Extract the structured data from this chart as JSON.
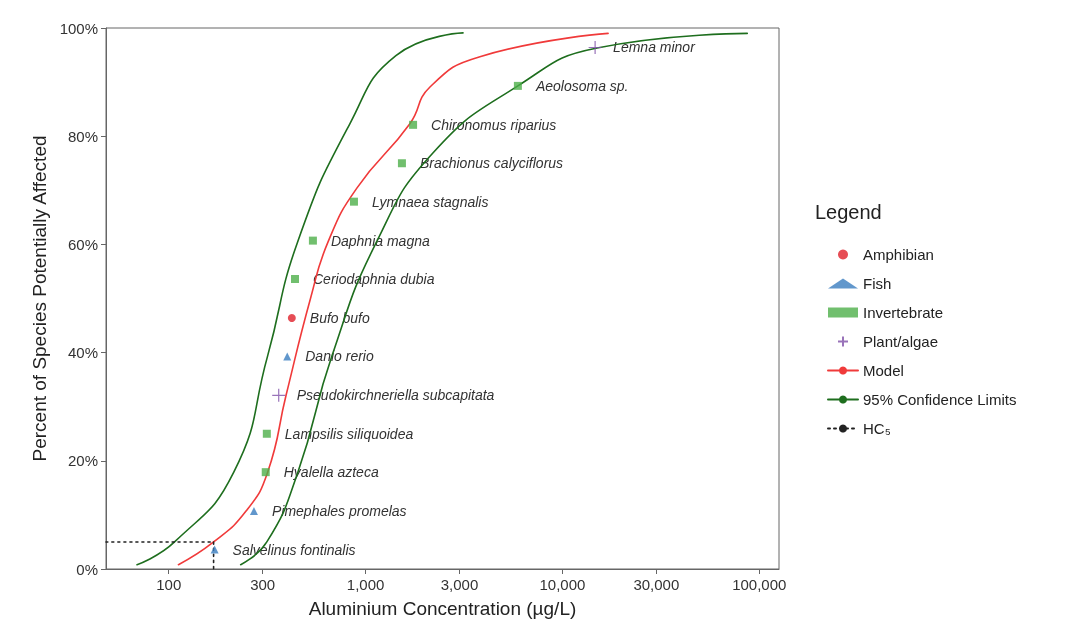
{
  "chart_data": {
    "type": "scatter",
    "xlabel": "Aluminium Concentration (µg/L)",
    "ylabel": "Percent of Species Potentially Affected",
    "legend_title": "Legend",
    "legend": "right",
    "log": "x",
    "xlim": [
      48,
      126000
    ],
    "ylim": [
      0,
      100
    ],
    "xticks": [
      100,
      300,
      {
        "value": 1000,
        "label": "1,000"
      },
      {
        "value": 3000,
        "label": "3,000"
      },
      {
        "value": 10000,
        "label": "10,000"
      },
      {
        "value": 30000,
        "label": "30,000"
      },
      {
        "value": 100000,
        "label": "100,000"
      }
    ],
    "yticks": [
      {
        "value": 0,
        "label": "0%"
      },
      {
        "value": 20,
        "label": "20%"
      },
      {
        "value": 40,
        "label": "40%"
      },
      {
        "value": 60,
        "label": "60%"
      },
      {
        "value": 80,
        "label": "80%"
      },
      {
        "value": 100,
        "label": "100%"
      }
    ],
    "series": [
      {
        "name": "Amphibian",
        "marker": "circle",
        "color": "#e0202a",
        "x": [
          422
        ],
        "values": [
          46.4
        ]
      },
      {
        "name": "Fish",
        "marker": "triangle",
        "color": "#3a7dbf",
        "x": [
          171,
          271,
          400
        ],
        "values": [
          3.6,
          10.7,
          39.3
        ]
      },
      {
        "name": "Invertebrate",
        "marker": "square",
        "color": "#4daf4a",
        "x": [
          311,
          315,
          438,
          540,
          873,
          1530,
          1743,
          5940
        ],
        "values": [
          17.9,
          25,
          53.6,
          60.7,
          67.9,
          75,
          82.1,
          89.3
        ]
      },
      {
        "name": "Plant/algae",
        "marker": "cross",
        "color": "#8050a8",
        "x": [
          362,
          14660
        ],
        "values": [
          32.1,
          96.4
        ]
      },
      {
        "name": "Model",
        "type": "line",
        "marker": "none",
        "line_style": "solid",
        "color": "#f03a3a",
        "x": [
          112,
          169,
          247,
          318,
          395,
          525,
          647,
          903,
          1679,
          2124,
          3810,
          17060
        ],
        "values": [
          0.8,
          5,
          10.7,
          17.9,
          32.2,
          50,
          60.6,
          70.4,
          82.3,
          89.1,
          94.7,
          99
        ]
      },
      {
        "name": "95% Confidence Limits",
        "type": "line",
        "marker": "none",
        "line_style": "solid",
        "color": "#1e6e1e",
        "x": [
          69,
          107,
          214,
          318,
          453,
          832,
          1426,
          3126
        ],
        "values": [
          0.8,
          5,
          17.9,
          39.4,
          60.6,
          82.3,
          94.9,
          99.1
        ]
      },
      {
        "type": "line",
        "marker": "none",
        "line_style": "solid",
        "color": "#1e6e1e",
        "x": [
          232,
          315,
          453,
          675,
          1142,
          2198,
          5940,
          15000,
          86900
        ],
        "values": [
          0.8,
          5,
          17.9,
          39.4,
          60.6,
          76.9,
          89.3,
          96.3,
          99
        ]
      },
      {
        "name": "HC₅",
        "type": "line",
        "marker": "none",
        "line_style": "dotted",
        "color": "#222222",
        "x": [
          48,
          169,
          169
        ],
        "values": [
          5,
          5,
          0
        ]
      }
    ],
    "annotations": [
      {
        "text": "Salvelinus fontinalis",
        "x": 171,
        "y": 3.6
      },
      {
        "text": "Pimephales promelas",
        "x": 271,
        "y": 10.7
      },
      {
        "text": "Hyalella azteca",
        "x": 311,
        "y": 17.9
      },
      {
        "text": "Lampsilis siliquoidea",
        "x": 315,
        "y": 25
      },
      {
        "text": "Pseudokirchneriella subcapitata",
        "x": 362,
        "y": 32.1
      },
      {
        "text": "Danio rerio",
        "x": 400,
        "y": 39.3
      },
      {
        "text": "Bufo bufo",
        "x": 422,
        "y": 46.4
      },
      {
        "text": "Ceriodaphnia dubia",
        "x": 438,
        "y": 53.6
      },
      {
        "text": "Daphnia magna",
        "x": 540,
        "y": 60.7
      },
      {
        "text": "Lymnaea stagnalis",
        "x": 873,
        "y": 67.9
      },
      {
        "text": "Brachionus calyciflorus",
        "x": 1530,
        "y": 75
      },
      {
        "text": "Chironomus riparius",
        "x": 1743,
        "y": 82.1
      },
      {
        "text": "Aeolosoma sp.",
        "x": 5940,
        "y": 89.3
      },
      {
        "text": "Lemna minor",
        "x": 14660,
        "y": 96.4
      }
    ]
  }
}
